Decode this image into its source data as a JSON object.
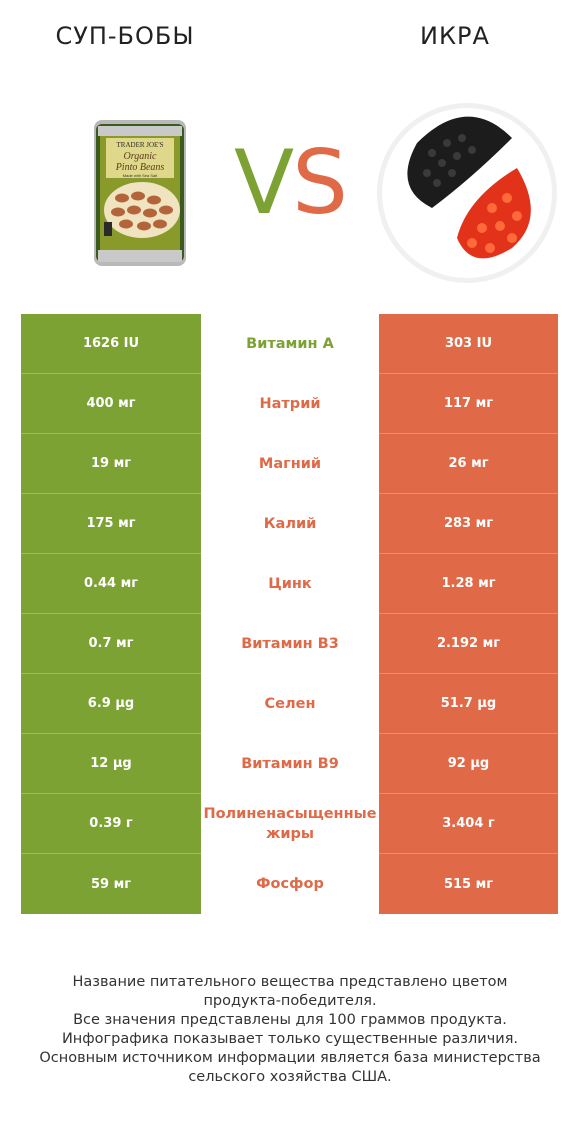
{
  "header": {
    "left_title": "СУП-БОБЫ",
    "right_title": "ИКРА"
  },
  "vs": {
    "v": "V",
    "s": "S"
  },
  "colors": {
    "green": "#7ba232",
    "orange": "#e06a48"
  },
  "can_label": {
    "brand": "TRADER JOE'S",
    "line1": "Organic",
    "line2": "Pinto Beans",
    "line3": "Made with Sea Salt"
  },
  "rows": [
    {
      "left": "1626 IU",
      "name": "Витамин A",
      "right": "303 IU",
      "winner": "green"
    },
    {
      "left": "400 мг",
      "name": "Натрий",
      "right": "117 мг",
      "winner": "orange"
    },
    {
      "left": "19 мг",
      "name": "Магний",
      "right": "26 мг",
      "winner": "orange"
    },
    {
      "left": "175 мг",
      "name": "Калий",
      "right": "283 мг",
      "winner": "orange"
    },
    {
      "left": "0.44 мг",
      "name": "Цинк",
      "right": "1.28 мг",
      "winner": "orange"
    },
    {
      "left": "0.7 мг",
      "name": "Витамин B3",
      "right": "2.192 мг",
      "winner": "orange"
    },
    {
      "left": "6.9 µg",
      "name": "Селен",
      "right": "51.7 µg",
      "winner": "orange"
    },
    {
      "left": "12 µg",
      "name": "Витамин B9",
      "right": "92 µg",
      "winner": "orange"
    },
    {
      "left": "0.39 г",
      "name": "Полиненасыщенные жиры",
      "right": "3.404 г",
      "winner": "orange"
    },
    {
      "left": "59 мг",
      "name": "Фосфор",
      "right": "515 мг",
      "winner": "orange"
    }
  ],
  "footer": {
    "line1": "Название питательного вещества представлено цветом",
    "line2": "продукта-победителя.",
    "line3": "Все значения представлены для 100 граммов продукта.",
    "line4": "Инфографика показывает только существенные различия.",
    "line5": "Основным источником информации является база министерства",
    "line6": "сельского хозяйства США."
  }
}
